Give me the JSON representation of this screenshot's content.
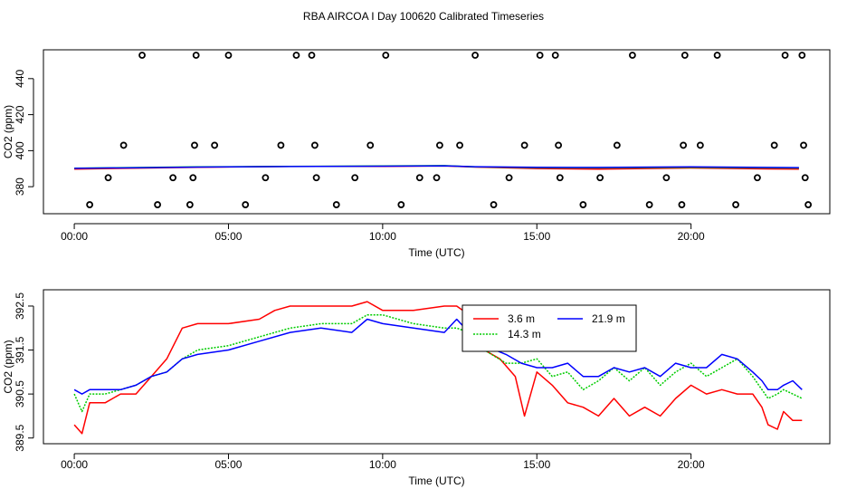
{
  "title": "RBA AIRCOA I  Day 100620  Calibrated Timeseries",
  "chart_data": [
    {
      "type": "scatter",
      "title": "",
      "xlabel": "Time (UTC)",
      "ylabel": "CO2 (ppm)",
      "xlim": [
        -1,
        24.5
      ],
      "ylim": [
        365,
        456
      ],
      "x_ticks": [
        0,
        5,
        10,
        15,
        20
      ],
      "x_tick_labels": [
        "00:00",
        "05:00",
        "10:00",
        "15:00",
        "20:00"
      ],
      "y_ticks": [
        380,
        400,
        420,
        440
      ],
      "y_tick_labels": [
        "380",
        "400",
        "420",
        "440"
      ],
      "colors": [
        "#ff0000",
        "#00cc00",
        "#0000ff"
      ],
      "background_points": {
        "x": [
          0.5,
          1.1,
          1.6,
          2.2,
          2.7,
          3.2,
          3.75,
          3.85,
          3.9,
          3.95,
          4.55,
          5.0,
          5.55,
          6.2,
          6.7,
          7.2,
          7.7,
          7.8,
          7.85,
          8.5,
          9.1,
          9.6,
          10.1,
          10.6,
          11.2,
          11.75,
          11.85,
          12.5,
          13.0,
          13.6,
          14.1,
          14.6,
          15.1,
          15.6,
          15.7,
          15.75,
          16.5,
          17.05,
          17.6,
          18.1,
          18.65,
          19.2,
          19.7,
          19.75,
          19.8,
          20.3,
          20.85,
          21.45,
          22.15,
          22.7,
          23.05,
          23.6,
          23.65,
          23.7,
          23.8
        ],
        "y": [
          370,
          385,
          403,
          453,
          370,
          385,
          370,
          385,
          403,
          453,
          403,
          453,
          370,
          385,
          403,
          453,
          453,
          403,
          385,
          370,
          385,
          403,
          453,
          370,
          385,
          385,
          403,
          403,
          453,
          370,
          385,
          403,
          453,
          453,
          403,
          385,
          370,
          385,
          403,
          453,
          370,
          385,
          370,
          403,
          453,
          403,
          453,
          370,
          385,
          403,
          453,
          453,
          403,
          385,
          370
        ]
      },
      "series": [
        {
          "name": "3.6 m",
          "color": "#ff0000",
          "x": [
            0,
            4,
            7,
            10,
            12,
            13,
            15,
            17,
            20,
            22.5,
            23.5
          ],
          "y": [
            389.8,
            390.8,
            391.3,
            391.3,
            391.5,
            390.9,
            390.1,
            389.8,
            390.4,
            389.9,
            389.8
          ]
        },
        {
          "name": "14.3 m",
          "color": "#00cc00",
          "x": [
            0,
            4,
            7,
            10,
            12,
            13,
            15,
            17,
            20,
            22.5,
            23.5
          ],
          "y": [
            390.3,
            391.0,
            391.3,
            391.5,
            391.7,
            391.0,
            390.6,
            390.5,
            390.8,
            390.5,
            390.4
          ]
        },
        {
          "name": "21.9 m",
          "color": "#0000ff",
          "x": [
            0,
            4,
            7,
            10,
            12,
            13,
            15,
            17,
            20,
            22.5,
            23.5
          ],
          "y": [
            390.2,
            390.9,
            391.2,
            391.4,
            391.6,
            391.1,
            390.8,
            390.7,
            391.0,
            390.7,
            390.6
          ]
        }
      ]
    },
    {
      "type": "line",
      "title": "",
      "xlabel": "Time (UTC)",
      "ylabel": "CO2 (ppm)",
      "xlim": [
        -1,
        24.5
      ],
      "ylim": [
        389.37,
        392.87
      ],
      "x_ticks": [
        0,
        5,
        10,
        15,
        20
      ],
      "x_tick_labels": [
        "00:00",
        "05:00",
        "10:00",
        "15:00",
        "20:00"
      ],
      "y_ticks": [
        389.5,
        390.5,
        391.5,
        392.5
      ],
      "y_tick_labels": [
        "389.5",
        "390.5",
        "391.5",
        "392.5"
      ],
      "legend": {
        "position": "top-right",
        "entries": [
          "3.6 m",
          "14.3 m",
          "21.9 m"
        ]
      },
      "series": [
        {
          "name": "3.6 m",
          "color": "#ff0000",
          "dash": "solid",
          "x": [
            0,
            0.25,
            0.5,
            1,
            1.5,
            2,
            2.5,
            3,
            3.5,
            4,
            5,
            6,
            6.5,
            7,
            8,
            9,
            9.5,
            10,
            11,
            12,
            12.4,
            12.8,
            13.3,
            13.8,
            14.3,
            14.6,
            15,
            15.5,
            16,
            16.5,
            17,
            17.5,
            18,
            18.5,
            19,
            19.5,
            20,
            20.5,
            21,
            21.5,
            22,
            22.3,
            22.5,
            22.8,
            23,
            23.3,
            23.6
          ],
          "y": [
            389.8,
            389.6,
            390.3,
            390.3,
            390.5,
            390.5,
            390.9,
            391.3,
            392.0,
            392.1,
            392.1,
            392.2,
            392.4,
            392.5,
            392.5,
            392.5,
            392.6,
            392.4,
            392.4,
            392.5,
            392.5,
            392.3,
            391.5,
            391.3,
            390.9,
            390.0,
            391.0,
            390.7,
            390.3,
            390.2,
            390.0,
            390.4,
            390.0,
            390.2,
            390.0,
            390.4,
            390.7,
            390.5,
            390.6,
            390.5,
            390.5,
            390.2,
            389.8,
            389.7,
            390.1,
            389.9,
            389.9
          ]
        },
        {
          "name": "14.3 m",
          "color": "#00cc00",
          "dash": "dotted",
          "x": [
            0,
            0.25,
            0.5,
            1,
            1.5,
            2,
            2.5,
            3,
            3.5,
            4,
            5,
            6,
            7,
            8,
            9,
            9.5,
            10,
            11,
            12,
            12.4,
            12.8,
            13.3,
            14,
            14.5,
            15,
            15.5,
            16,
            16.5,
            17,
            17.5,
            18,
            18.5,
            19,
            19.5,
            20,
            20.5,
            21,
            21.5,
            22,
            22.3,
            22.5,
            22.8,
            23,
            23.3,
            23.6
          ],
          "y": [
            390.5,
            390.1,
            390.5,
            390.5,
            390.6,
            390.7,
            390.9,
            391.0,
            391.3,
            391.5,
            391.6,
            391.8,
            392.0,
            392.1,
            392.1,
            392.3,
            392.3,
            392.1,
            392.0,
            392.0,
            391.9,
            391.5,
            391.2,
            391.2,
            391.3,
            390.9,
            391.0,
            390.6,
            390.8,
            391.1,
            390.8,
            391.1,
            390.7,
            391.0,
            391.2,
            390.9,
            391.1,
            391.3,
            390.9,
            390.6,
            390.4,
            390.5,
            390.6,
            390.5,
            390.4
          ]
        },
        {
          "name": "21.9 m",
          "color": "#0000ff",
          "dash": "solid",
          "x": [
            0,
            0.25,
            0.5,
            1,
            1.5,
            2,
            2.5,
            3,
            3.5,
            4,
            5,
            6,
            7,
            8,
            9,
            9.5,
            10,
            11,
            12,
            12.4,
            12.8,
            13.3,
            14,
            14.5,
            15,
            15.5,
            16,
            16.5,
            17,
            17.5,
            18,
            18.5,
            19,
            19.5,
            20,
            20.5,
            21,
            21.5,
            22,
            22.3,
            22.5,
            22.8,
            23,
            23.3,
            23.6
          ],
          "y": [
            390.6,
            390.5,
            390.6,
            390.6,
            390.6,
            390.7,
            390.9,
            391.0,
            391.3,
            391.4,
            391.5,
            391.7,
            391.9,
            392.0,
            391.9,
            392.2,
            392.1,
            392.0,
            391.9,
            392.2,
            391.9,
            391.6,
            391.4,
            391.2,
            391.1,
            391.1,
            391.2,
            390.9,
            390.9,
            391.1,
            391.0,
            391.1,
            390.9,
            391.2,
            391.1,
            391.1,
            391.4,
            391.3,
            391.0,
            390.8,
            390.6,
            390.6,
            390.7,
            390.8,
            390.6
          ]
        }
      ]
    }
  ]
}
